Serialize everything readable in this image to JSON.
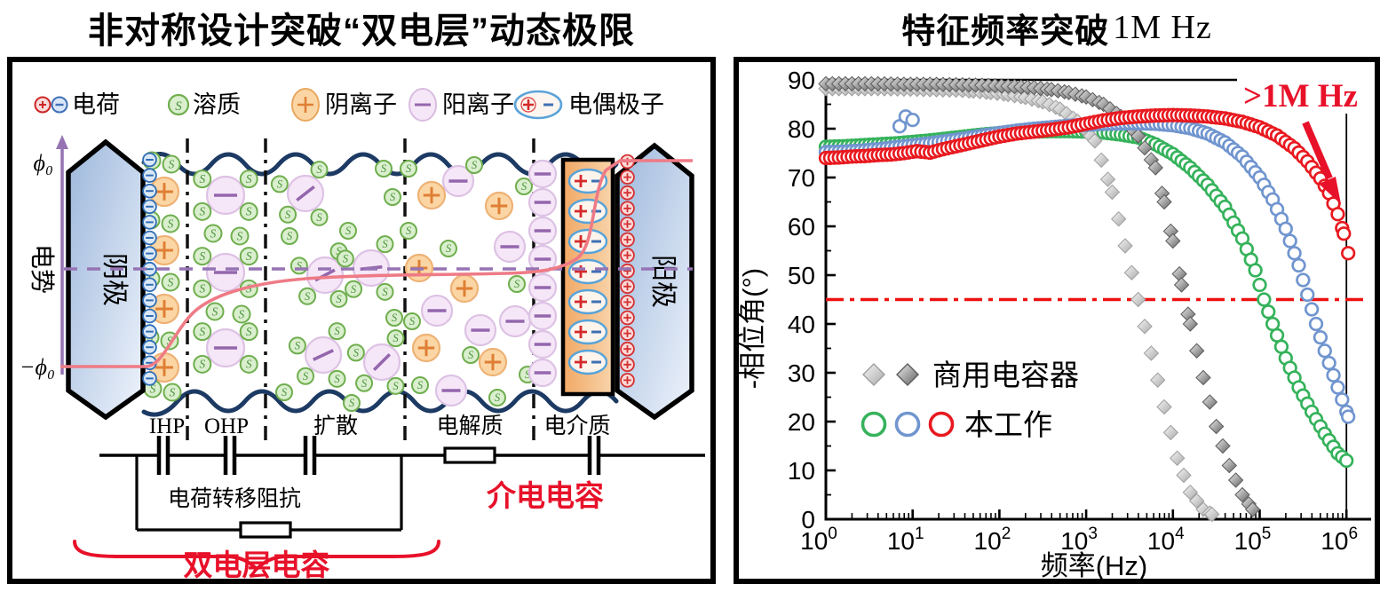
{
  "left_panel": {
    "title": "非对称设计突破“双电层”动态极限",
    "legend": [
      {
        "icon": "charge-pair-icon",
        "label": "电荷"
      },
      {
        "icon": "solute-icon",
        "label": "溶质"
      },
      {
        "icon": "anion-icon",
        "label": "阴离子"
      },
      {
        "icon": "cation-icon",
        "label": "阳离子"
      },
      {
        "icon": "dipole-icon",
        "label": "电偶极子"
      }
    ],
    "axis": {
      "ylabel": "电势",
      "phi_top": "ϕ₀",
      "phi_bottom": "−ϕ₀"
    },
    "electrodes": {
      "left": "阴极",
      "right": "阳极"
    },
    "regions": [
      "IHP",
      "OHP",
      "扩散",
      "电解质",
      "电介质"
    ],
    "circuit": {
      "charge_transfer_label": "电荷转移阻抗",
      "edl_label": "双电层电容",
      "dielectric_label": "介电电容"
    },
    "colors": {
      "red_accent": "#e8112a",
      "navy": "#1c3a63",
      "purple": "#9674b4",
      "curve_red": "#ee7b86"
    }
  },
  "right_panel": {
    "title_zh": "特征频率突破",
    "title_suffix": "1M Hz",
    "annotation": ">1M Hz",
    "legend": [
      {
        "markers": "diamonds",
        "label": "商用电容器"
      },
      {
        "markers": "circles",
        "label": "本工作"
      }
    ],
    "chart_data": {
      "type": "scatter",
      "xlabel": "频率(Hz)",
      "ylabel": "-相位角(°)",
      "x_scale": "log",
      "xlim": [
        1,
        1000000
      ],
      "ylim": [
        0,
        90
      ],
      "y_ticks": [
        0,
        10,
        20,
        30,
        40,
        50,
        60,
        70,
        80,
        90
      ],
      "x_tick_base": "10",
      "x_tick_exponents": [
        0,
        1,
        2,
        3,
        4,
        5,
        6
      ],
      "reference_line": {
        "y": 45,
        "color": "#ee1111",
        "style": "dash-dot"
      },
      "series": [
        {
          "name": "商用电容器-1",
          "marker": "diamond",
          "color": "#b9b9b9",
          "points": [
            [
              0,
              88.2
            ],
            [
              0.3,
              88.2
            ],
            [
              0.6,
              88.2
            ],
            [
              0.9,
              88.1
            ],
            [
              1.2,
              88.0
            ],
            [
              1.5,
              87.9
            ],
            [
              1.7,
              87.7
            ],
            [
              1.9,
              87.4
            ],
            [
              2.1,
              87.0
            ],
            [
              2.3,
              86.4
            ],
            [
              2.5,
              85.5
            ],
            [
              2.7,
              84.0
            ],
            [
              2.9,
              81.5
            ],
            [
              3.1,
              77.5
            ],
            [
              3.3,
              67.0
            ],
            [
              3.45,
              56.0
            ],
            [
              3.6,
              45.0
            ],
            [
              3.75,
              34.0
            ],
            [
              3.9,
              23.0
            ],
            [
              4.05,
              12.5
            ],
            [
              4.2,
              5.5
            ],
            [
              4.35,
              2.0
            ],
            [
              4.45,
              1.0
            ]
          ]
        },
        {
          "name": "商用电容器-2",
          "marker": "diamond",
          "color": "#7f7f7f",
          "points": [
            [
              0,
              89.2
            ],
            [
              0.3,
              89.2
            ],
            [
              0.6,
              89.2
            ],
            [
              0.9,
              89.1
            ],
            [
              1.2,
              89.1
            ],
            [
              1.5,
              89.0
            ],
            [
              1.8,
              88.9
            ],
            [
              2.1,
              88.7
            ],
            [
              2.4,
              88.4
            ],
            [
              2.6,
              88.0
            ],
            [
              2.8,
              87.4
            ],
            [
              3.0,
              86.5
            ],
            [
              3.2,
              85.0
            ],
            [
              3.4,
              82.5
            ],
            [
              3.6,
              78.5
            ],
            [
              3.8,
              72.0
            ],
            [
              3.9,
              65.0
            ],
            [
              4.0,
              57.0
            ],
            [
              4.1,
              48.0
            ],
            [
              4.2,
              40.0
            ],
            [
              4.35,
              29.0
            ],
            [
              4.5,
              19.0
            ],
            [
              4.65,
              11.0
            ],
            [
              4.8,
              5.0
            ],
            [
              4.92,
              2.0
            ]
          ]
        },
        {
          "name": "本工作-绿",
          "marker": "circle",
          "color": "#35b25b",
          "points": [
            [
              0,
              76.3
            ],
            [
              0.2,
              76.4
            ],
            [
              0.4,
              76.6
            ],
            [
              0.6,
              76.8
            ],
            [
              0.8,
              77.0
            ],
            [
              1.0,
              77.3
            ],
            [
              1.2,
              77.6
            ],
            [
              1.4,
              78.0
            ],
            [
              1.6,
              78.4
            ],
            [
              1.8,
              78.8
            ],
            [
              2.0,
              79.1
            ],
            [
              2.2,
              79.3
            ],
            [
              2.4,
              79.4
            ],
            [
              2.6,
              79.5
            ],
            [
              2.8,
              79.5
            ],
            [
              3.0,
              79.4
            ],
            [
              3.2,
              79.2
            ],
            [
              3.4,
              78.8
            ],
            [
              3.6,
              78.2
            ],
            [
              3.8,
              76.8
            ],
            [
              4.0,
              74.8
            ],
            [
              4.2,
              72.0
            ],
            [
              4.4,
              68.5
            ],
            [
              4.6,
              64.0
            ],
            [
              4.8,
              57.5
            ],
            [
              4.95,
              51.0
            ],
            [
              5.05,
              45.0
            ],
            [
              5.15,
              40.0
            ],
            [
              5.3,
              33.0
            ],
            [
              5.45,
              27.0
            ],
            [
              5.6,
              22.0
            ],
            [
              5.75,
              17.5
            ],
            [
              5.9,
              13.5
            ],
            [
              6.0,
              12.0
            ]
          ]
        },
        {
          "name": "本工作-蓝",
          "marker": "circle",
          "color": "#7095cf",
          "points": [
            [
              0,
              75.2
            ],
            [
              0.2,
              75.3
            ],
            [
              0.4,
              75.5
            ],
            [
              0.6,
              75.8
            ],
            [
              0.8,
              76.2
            ],
            [
              1.0,
              76.6
            ],
            [
              1.2,
              77.0
            ],
            [
              1.4,
              77.5
            ],
            [
              1.6,
              78.0
            ],
            [
              1.8,
              78.6
            ],
            [
              2.0,
              79.1
            ],
            [
              2.2,
              79.6
            ],
            [
              2.4,
              80.0
            ],
            [
              2.6,
              80.3
            ],
            [
              2.8,
              80.6
            ],
            [
              3.0,
              80.8
            ],
            [
              3.2,
              81.0
            ],
            [
              3.4,
              81.1
            ],
            [
              3.6,
              81.1
            ],
            [
              3.8,
              81.0
            ],
            [
              4.0,
              80.7
            ],
            [
              4.2,
              80.1
            ],
            [
              4.4,
              79.0
            ],
            [
              4.6,
              77.2
            ],
            [
              4.8,
              74.3
            ],
            [
              5.0,
              70.0
            ],
            [
              5.15,
              65.5
            ],
            [
              5.3,
              59.5
            ],
            [
              5.45,
              52.0
            ],
            [
              5.55,
              46.0
            ],
            [
              5.65,
              40.0
            ],
            [
              5.75,
              34.5
            ],
            [
              5.85,
              29.5
            ],
            [
              5.95,
              24.5
            ],
            [
              6.02,
              21.0
            ]
          ],
          "outliers": [
            [
              0.85,
              80.5
            ],
            [
              0.92,
              82.5
            ],
            [
              1.0,
              81.8
            ]
          ]
        },
        {
          "name": "本工作-红",
          "marker": "circle",
          "color": "#e8191f",
          "points": [
            [
              0,
              74.0
            ],
            [
              0.15,
              74.1
            ],
            [
              0.3,
              74.3
            ],
            [
              0.45,
              74.4
            ],
            [
              0.6,
              74.6
            ],
            [
              0.75,
              74.7
            ],
            [
              0.9,
              75.0
            ],
            [
              1.05,
              75.4
            ],
            [
              1.2,
              75.1
            ],
            [
              1.35,
              75.8
            ],
            [
              1.5,
              76.4
            ],
            [
              1.65,
              77.0
            ],
            [
              1.8,
              77.6
            ],
            [
              2.0,
              78.4
            ],
            [
              2.2,
              79.0
            ],
            [
              2.4,
              79.4
            ],
            [
              2.6,
              79.8
            ],
            [
              2.8,
              80.3
            ],
            [
              3.0,
              81.0
            ],
            [
              3.2,
              81.7
            ],
            [
              3.4,
              82.2
            ],
            [
              3.6,
              82.5
            ],
            [
              3.8,
              82.7
            ],
            [
              4.0,
              82.8
            ],
            [
              4.2,
              82.7
            ],
            [
              4.4,
              82.5
            ],
            [
              4.6,
              82.1
            ],
            [
              4.8,
              81.4
            ],
            [
              5.0,
              80.3
            ],
            [
              5.2,
              78.6
            ],
            [
              5.4,
              76.0
            ],
            [
              5.55,
              73.3
            ],
            [
              5.7,
              69.8
            ],
            [
              5.8,
              66.8
            ],
            [
              5.9,
              62.5
            ],
            [
              5.97,
              58.5
            ],
            [
              6.02,
              54.5
            ]
          ]
        }
      ]
    }
  }
}
